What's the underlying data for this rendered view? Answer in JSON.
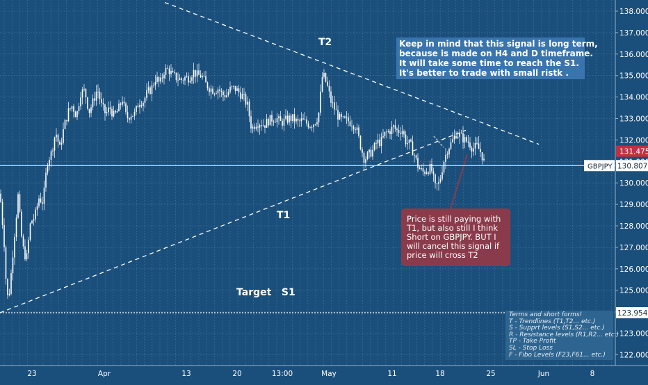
{
  "chart_data": {
    "type": "candlestick",
    "symbol": "GBPJPY",
    "last_price": "130.807",
    "upper_price_tag": "131.475",
    "target_price_tag": "123.954",
    "ylim": [
      121.6,
      138.4
    ],
    "y_ticks": [
      "122.000",
      "123.000",
      "124.000",
      "125.000",
      "126.000",
      "127.000",
      "128.000",
      "129.000",
      "130.000",
      "131.000",
      "132.000",
      "133.000",
      "134.000",
      "135.000",
      "136.000",
      "137.000",
      "138.000"
    ],
    "x_ticks": [
      "23",
      "Apr",
      "13",
      "20",
      "13:00",
      "May",
      "11",
      "18",
      "25",
      "Jun",
      "8"
    ],
    "trendlines": [
      {
        "name": "T1",
        "from": [
          0,
          123.954
        ],
        "to": [
          670,
          132.45
        ]
      },
      {
        "name": "T2",
        "from": [
          237,
          138.4
        ],
        "to": [
          775,
          131.8
        ]
      }
    ],
    "target_level": 123.954,
    "price_path": [
      [
        0,
        129.5
      ],
      [
        6,
        127.2
      ],
      [
        10,
        124.6
      ],
      [
        14,
        125.0
      ],
      [
        20,
        127.3
      ],
      [
        26,
        129.4
      ],
      [
        32,
        127.1
      ],
      [
        38,
        126.4
      ],
      [
        44,
        128.2
      ],
      [
        50,
        128.4
      ],
      [
        56,
        129.3
      ],
      [
        62,
        129.1
      ],
      [
        68,
        131.0
      ],
      [
        74,
        131.4
      ],
      [
        80,
        132.4
      ],
      [
        86,
        131.6
      ],
      [
        92,
        132.6
      ],
      [
        98,
        133.3
      ],
      [
        104,
        133.6
      ],
      [
        110,
        133.1
      ],
      [
        116,
        134.2
      ],
      [
        122,
        134.3
      ],
      [
        128,
        133.3
      ],
      [
        134,
        133.8
      ],
      [
        140,
        134.4
      ],
      [
        146,
        133.6
      ],
      [
        152,
        133.2
      ],
      [
        158,
        133.5
      ],
      [
        164,
        133.1
      ],
      [
        170,
        133.4
      ],
      [
        176,
        133.9
      ],
      [
        182,
        133.0
      ],
      [
        188,
        133.2
      ],
      [
        194,
        133.2
      ],
      [
        200,
        133.8
      ],
      [
        206,
        133.8
      ],
      [
        212,
        134.2
      ],
      [
        218,
        134.4
      ],
      [
        224,
        134.9
      ],
      [
        230,
        134.6
      ],
      [
        236,
        135.2
      ],
      [
        242,
        135.3
      ],
      [
        248,
        135.0
      ],
      [
        254,
        134.9
      ],
      [
        260,
        134.8
      ],
      [
        266,
        134.9
      ],
      [
        272,
        134.9
      ],
      [
        278,
        135.2
      ],
      [
        284,
        135.0
      ],
      [
        290,
        135.0
      ],
      [
        296,
        134.6
      ],
      [
        302,
        134.4
      ],
      [
        308,
        134.3
      ],
      [
        314,
        134.4
      ],
      [
        320,
        134.1
      ],
      [
        326,
        134.1
      ],
      [
        332,
        134.4
      ],
      [
        338,
        134.4
      ],
      [
        344,
        134.2
      ],
      [
        350,
        134.0
      ],
      [
        356,
        133.6
      ],
      [
        362,
        132.5
      ],
      [
        368,
        132.8
      ],
      [
        374,
        132.8
      ],
      [
        380,
        132.7
      ],
      [
        386,
        132.9
      ],
      [
        392,
        133.0
      ],
      [
        398,
        133.0
      ],
      [
        404,
        132.8
      ],
      [
        410,
        132.9
      ],
      [
        416,
        133.0
      ],
      [
        422,
        133.0
      ],
      [
        428,
        132.8
      ],
      [
        434,
        132.9
      ],
      [
        440,
        132.8
      ],
      [
        446,
        132.7
      ],
      [
        452,
        132.8
      ],
      [
        458,
        133.1
      ],
      [
        464,
        135.1
      ],
      [
        470,
        134.6
      ],
      [
        476,
        133.8
      ],
      [
        482,
        133.4
      ],
      [
        488,
        133.0
      ],
      [
        494,
        132.9
      ],
      [
        500,
        132.9
      ],
      [
        506,
        132.8
      ],
      [
        512,
        132.6
      ],
      [
        518,
        131.8
      ],
      [
        524,
        131.1
      ],
      [
        530,
        131.3
      ],
      [
        536,
        131.5
      ],
      [
        542,
        131.9
      ],
      [
        548,
        131.9
      ],
      [
        554,
        132.3
      ],
      [
        560,
        132.4
      ],
      [
        566,
        132.6
      ],
      [
        572,
        132.4
      ],
      [
        578,
        132.5
      ],
      [
        584,
        131.9
      ],
      [
        590,
        131.8
      ],
      [
        596,
        131.3
      ],
      [
        602,
        130.7
      ],
      [
        608,
        130.5
      ],
      [
        614,
        130.6
      ],
      [
        620,
        130.7
      ],
      [
        626,
        129.8
      ],
      [
        632,
        130.0
      ],
      [
        638,
        131.0
      ],
      [
        644,
        131.6
      ],
      [
        650,
        131.9
      ],
      [
        656,
        132.3
      ],
      [
        662,
        132.2
      ],
      [
        668,
        132.0
      ],
      [
        674,
        131.9
      ],
      [
        680,
        131.6
      ],
      [
        686,
        131.7
      ],
      [
        692,
        131.4
      ],
      [
        698,
        130.8
      ]
    ]
  },
  "annotations": {
    "t1": "T1",
    "t2": "T2",
    "target": "Target   S1",
    "note_blue": [
      "Keep in mind that this signal is long term,",
      "because is made on H4 and D timeframe.",
      " It will take some time to reach the S1.",
      " It's better to trade with small ristk ."
    ],
    "note_red": "Price is still paying with T1, but also still I think Short on GBPJPY. BUT I will cancel this signal if price will cross T2",
    "terms": [
      "Terms and short forms!",
      "T - Trendlines (T1,T2... etc.)",
      "S - Supprt levels (S1,S2... etc.)",
      "R - Resistance levels (R1,R2... etc.)",
      "TP - Take Profit",
      "SL - Stop Loss",
      "F - Fibo Levels  (F23,F61... etc.)"
    ]
  },
  "colors": {
    "background": "#1b4f7b",
    "grid": "#5f8ab0",
    "candle": "#ffffff",
    "price_line": "#ffffff",
    "upper_tag": "#c0313f",
    "symbol_tag": "#ffffff",
    "axis_text": "#ffffff"
  }
}
